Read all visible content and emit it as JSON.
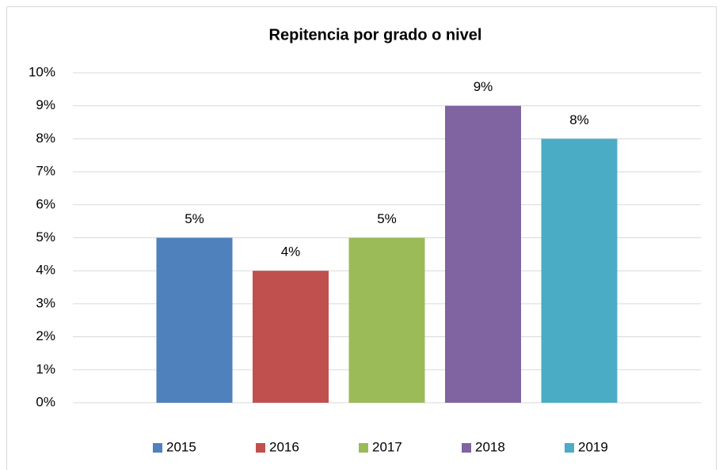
{
  "chart_data": {
    "type": "bar",
    "title": "Repitencia por grado o nivel",
    "categories": [
      null
    ],
    "series": [
      {
        "name": "2015",
        "color": "#4f81bd",
        "values": [
          5
        ],
        "value_labels": [
          "5%"
        ]
      },
      {
        "name": "2016",
        "color": "#c0504d",
        "values": [
          4
        ],
        "value_labels": [
          "4%"
        ]
      },
      {
        "name": "2017",
        "color": "#9bbb59",
        "values": [
          5
        ],
        "value_labels": [
          "5%"
        ]
      },
      {
        "name": "2018",
        "color": "#8064a2",
        "values": [
          9
        ],
        "value_labels": [
          "9%"
        ]
      },
      {
        "name": "2019",
        "color": "#4bacc6",
        "values": [
          8
        ],
        "value_labels": [
          "8%"
        ]
      }
    ],
    "ylim": [
      0,
      10
    ],
    "yticks": [
      {
        "value": 0,
        "label": "0%"
      },
      {
        "value": 1,
        "label": "1%"
      },
      {
        "value": 2,
        "label": "2%"
      },
      {
        "value": 3,
        "label": "3%"
      },
      {
        "value": 4,
        "label": "4%"
      },
      {
        "value": 5,
        "label": "5%"
      },
      {
        "value": 6,
        "label": "6%"
      },
      {
        "value": 7,
        "label": "7%"
      },
      {
        "value": 8,
        "label": "8%"
      },
      {
        "value": 9,
        "label": "9%"
      },
      {
        "value": 10,
        "label": "10%"
      }
    ],
    "grid": true,
    "legend": "bottom"
  }
}
